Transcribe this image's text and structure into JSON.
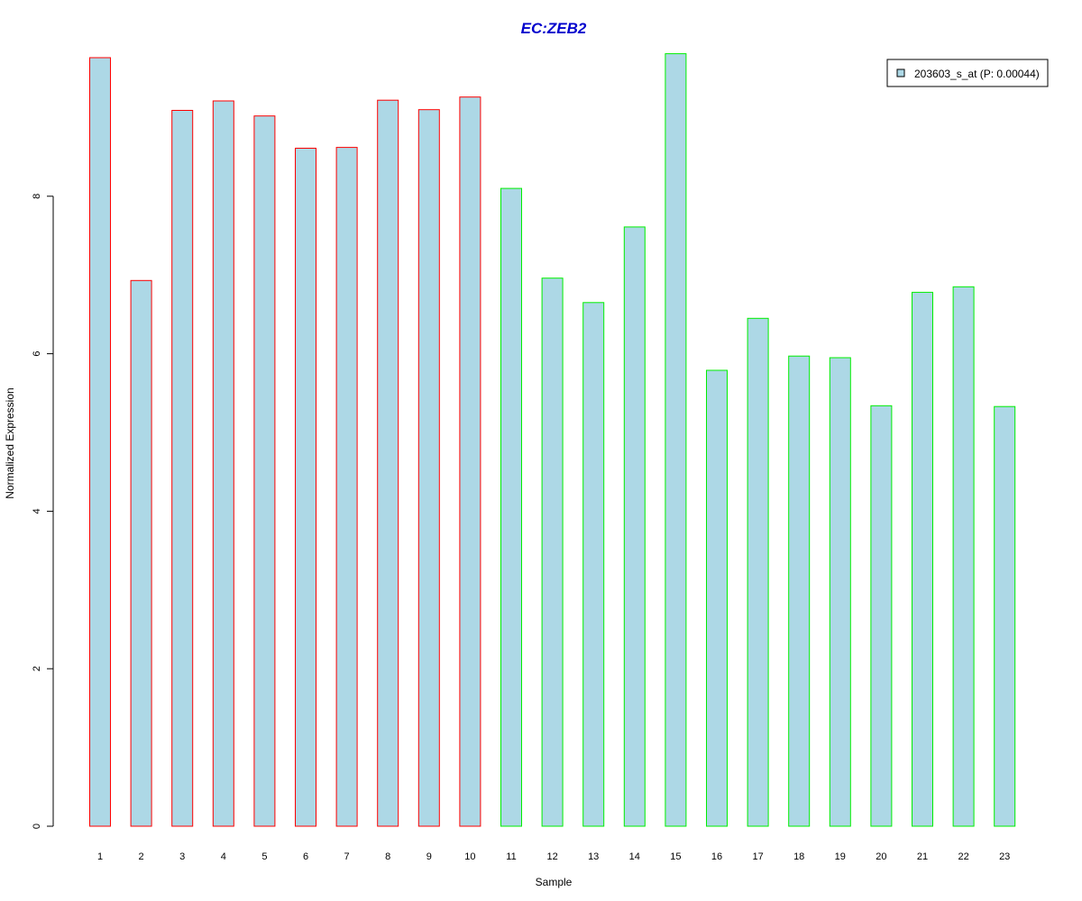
{
  "chart_data": {
    "type": "bar",
    "title": "EC:ZEB2",
    "xlabel": "Sample",
    "ylabel": "Normalized Expression",
    "categories": [
      "1",
      "2",
      "3",
      "4",
      "5",
      "6",
      "7",
      "8",
      "9",
      "10",
      "11",
      "12",
      "13",
      "14",
      "15",
      "16",
      "17",
      "18",
      "19",
      "20",
      "21",
      "22",
      "23"
    ],
    "series": [
      {
        "name": "203603_s_at (P: 0.00044)",
        "values": [
          9.76,
          6.93,
          9.09,
          9.21,
          9.02,
          8.61,
          8.62,
          9.22,
          9.1,
          9.26,
          8.1,
          6.96,
          6.65,
          7.61,
          9.81,
          5.79,
          6.45,
          5.97,
          5.95,
          5.34,
          6.78,
          6.85,
          5.33
        ]
      }
    ],
    "group_border_colors": [
      "#ff0000",
      "#ff0000",
      "#ff0000",
      "#ff0000",
      "#ff0000",
      "#ff0000",
      "#ff0000",
      "#ff0000",
      "#ff0000",
      "#ff0000",
      "#00ee00",
      "#00ee00",
      "#00ee00",
      "#00ee00",
      "#00ee00",
      "#00ee00",
      "#00ee00",
      "#00ee00",
      "#00ee00",
      "#00ee00",
      "#00ee00",
      "#00ee00",
      "#00ee00"
    ],
    "bar_fill_color": "#add8e6",
    "title_color": "#0000cd",
    "yticks": [
      "0",
      "2",
      "4",
      "6",
      "8"
    ],
    "ylim": [
      0,
      10
    ],
    "grid": false,
    "legend_position": "top-right"
  }
}
